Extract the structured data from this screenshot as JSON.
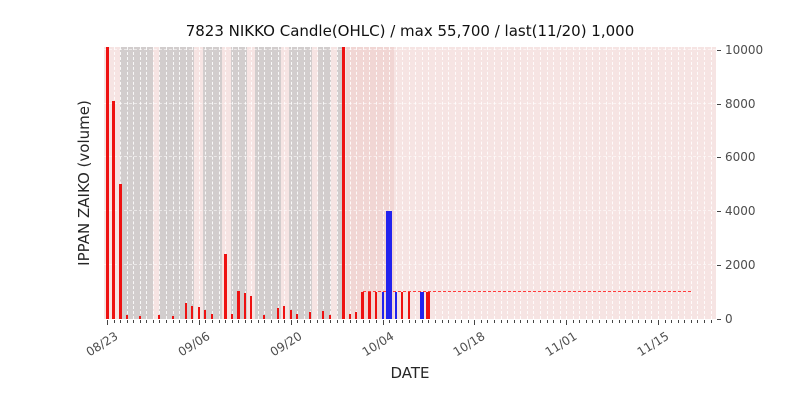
{
  "chart_data": {
    "type": "bar",
    "title": "7823 NIKKO Candle(OHLC) / max 55,700 / last(11/20) 1,000",
    "xlabel": "DATE",
    "ylabel": "IPPAN ZAIKO (volume)",
    "ylim": [
      0,
      10100
    ],
    "y_ticks": [
      0,
      2000,
      4000,
      6000,
      8000,
      10000
    ],
    "x_total_days": 93,
    "x_start_date": "08/23",
    "x_major_ticks": [
      {
        "day": 0,
        "label": "08/23"
      },
      {
        "day": 14,
        "label": "09/06"
      },
      {
        "day": 28,
        "label": "09/20"
      },
      {
        "day": 42,
        "label": "10/04"
      },
      {
        "day": 56,
        "label": "10/18"
      },
      {
        "day": 70,
        "label": "11/01"
      },
      {
        "day": 84,
        "label": "11/15"
      }
    ],
    "bars": [
      {
        "date": "08/23",
        "day": 0,
        "value": 55700,
        "color": "red",
        "w": 3
      },
      {
        "date": "08/24",
        "day": 1,
        "value": 8100,
        "color": "red",
        "w": 3
      },
      {
        "date": "08/25",
        "day": 2,
        "value": 5000,
        "color": "red",
        "w": 3
      },
      {
        "date": "08/26",
        "day": 3,
        "value": 150,
        "color": "red",
        "w": 2
      },
      {
        "date": "08/28",
        "day": 5,
        "value": 120,
        "color": "red",
        "w": 2
      },
      {
        "date": "08/31",
        "day": 8,
        "value": 150,
        "color": "red",
        "w": 2
      },
      {
        "date": "09/02",
        "day": 10,
        "value": 120,
        "color": "red",
        "w": 2
      },
      {
        "date": "09/04",
        "day": 12,
        "value": 600,
        "color": "red",
        "w": 2
      },
      {
        "date": "09/05",
        "day": 13,
        "value": 500,
        "color": "red",
        "w": 2
      },
      {
        "date": "09/06",
        "day": 14,
        "value": 450,
        "color": "red",
        "w": 2
      },
      {
        "date": "09/07",
        "day": 15,
        "value": 350,
        "color": "red",
        "w": 2
      },
      {
        "date": "09/08",
        "day": 16,
        "value": 180,
        "color": "red",
        "w": 2
      },
      {
        "date": "09/10",
        "day": 18,
        "value": 2400,
        "color": "red",
        "w": 3
      },
      {
        "date": "09/11",
        "day": 19,
        "value": 200,
        "color": "red",
        "w": 2
      },
      {
        "date": "09/12",
        "day": 20,
        "value": 1050,
        "color": "red",
        "w": 3
      },
      {
        "date": "09/13",
        "day": 21,
        "value": 950,
        "color": "red",
        "w": 2
      },
      {
        "date": "09/14",
        "day": 22,
        "value": 850,
        "color": "red",
        "w": 2
      },
      {
        "date": "09/16",
        "day": 24,
        "value": 150,
        "color": "red",
        "w": 2
      },
      {
        "date": "09/18",
        "day": 26,
        "value": 400,
        "color": "red",
        "w": 2
      },
      {
        "date": "09/19",
        "day": 27,
        "value": 500,
        "color": "red",
        "w": 2
      },
      {
        "date": "09/20",
        "day": 28,
        "value": 350,
        "color": "red",
        "w": 2
      },
      {
        "date": "09/21",
        "day": 29,
        "value": 200,
        "color": "red",
        "w": 2
      },
      {
        "date": "09/23",
        "day": 31,
        "value": 250,
        "color": "red",
        "w": 2
      },
      {
        "date": "09/25",
        "day": 33,
        "value": 300,
        "color": "red",
        "w": 2
      },
      {
        "date": "09/26",
        "day": 34,
        "value": 150,
        "color": "red",
        "w": 2
      },
      {
        "date": "09/28",
        "day": 36,
        "value": 12000,
        "color": "red",
        "w": 3
      },
      {
        "date": "09/29",
        "day": 37,
        "value": 200,
        "color": "red",
        "w": 2
      },
      {
        "date": "09/30",
        "day": 38,
        "value": 250,
        "color": "red",
        "w": 2
      },
      {
        "date": "10/01",
        "day": 39,
        "value": 1000,
        "color": "red",
        "w": 3
      },
      {
        "date": "10/02",
        "day": 40,
        "value": 1000,
        "color": "red",
        "w": 3
      },
      {
        "date": "10/03",
        "day": 41,
        "value": 1000,
        "color": "red",
        "w": 2
      },
      {
        "date": "10/04",
        "day": 42,
        "value": 1000,
        "color": "blue",
        "w": 2
      },
      {
        "date": "10/05",
        "day": 43,
        "value": 4000,
        "color": "blue",
        "w": 6
      },
      {
        "date": "10/06",
        "day": 44,
        "value": 1000,
        "color": "blue",
        "w": 2
      },
      {
        "date": "10/07",
        "day": 45,
        "value": 1000,
        "color": "red",
        "w": 2
      },
      {
        "date": "10/08",
        "day": 46,
        "value": 1000,
        "color": "red",
        "w": 2
      },
      {
        "date": "10/10",
        "day": 48,
        "value": 1000,
        "color": "blue",
        "w": 4
      },
      {
        "date": "10/11",
        "day": 49,
        "value": 1000,
        "color": "red",
        "w": 4
      }
    ],
    "reference_line": {
      "value": 1000,
      "from_day": 39,
      "to_day": 89,
      "style": "dashed"
    },
    "background_bands": {
      "gray": [
        [
          16,
          49
        ],
        [
          55,
          90
        ],
        [
          99,
          118
        ],
        [
          127,
          143
        ],
        [
          151,
          177
        ],
        [
          185,
          208
        ],
        [
          214,
          227
        ],
        [
          233,
          239
        ]
      ],
      "accent_pink": [
        [
          242,
          290
        ]
      ]
    }
  },
  "style": {
    "bar_red": "#ee1111",
    "bar_blue": "#2222ee",
    "plot_bg": "#f6e4e3",
    "band_gray": "#d2cdcd",
    "band_accent": "#f1d6d4",
    "ref_line": "#ff3b3b"
  }
}
